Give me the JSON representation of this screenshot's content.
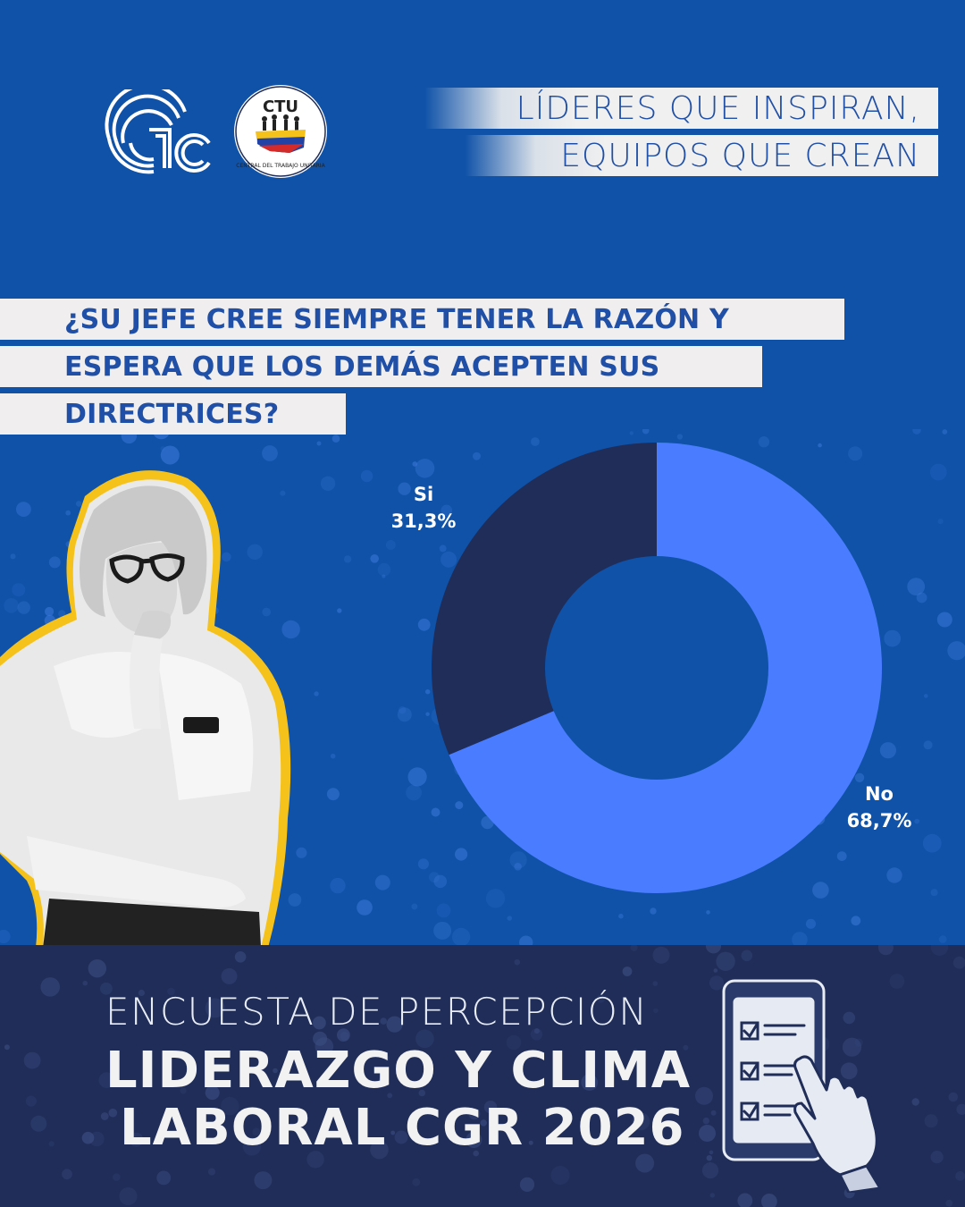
{
  "header": {
    "logo_left": "GTC",
    "logo_right": "CTU",
    "logo_right_caption": "CENTRAL DEL TRABAJO UNITARIA",
    "slogan_line1": "LÍDERES QUE INSPIRAN,",
    "slogan_line2": "EQUIPOS QUE CREAN"
  },
  "question": {
    "line1": "¿SU JEFE CREE SIEMPRE TENER LA RAZÓN Y",
    "line2": "ESPERA QUE LOS DEMÁS ACEPTEN SUS",
    "line3": "DIRECTRICES?"
  },
  "chart_data": {
    "type": "pie",
    "donut": true,
    "slices": [
      {
        "label": "Si",
        "value": 31.3,
        "display": "31,3%",
        "color": "#1f2d58"
      },
      {
        "label": "No",
        "value": 68.7,
        "display": "68,7%",
        "color": "#4a7cff"
      }
    ],
    "start_angle_deg": 0,
    "direction": "clockwise-from-top for No"
  },
  "footer": {
    "subtitle": "ENCUESTA DE PERCEPCIÓN",
    "title_line1": "LIDERAZGO Y CLIMA",
    "title_line2": "LABORAL CGR 2026"
  },
  "colors": {
    "background": "#0f52a8",
    "footer": "#1f2d58",
    "accent_yellow": "#f5c21b",
    "text_blue": "#1f4fa6"
  }
}
